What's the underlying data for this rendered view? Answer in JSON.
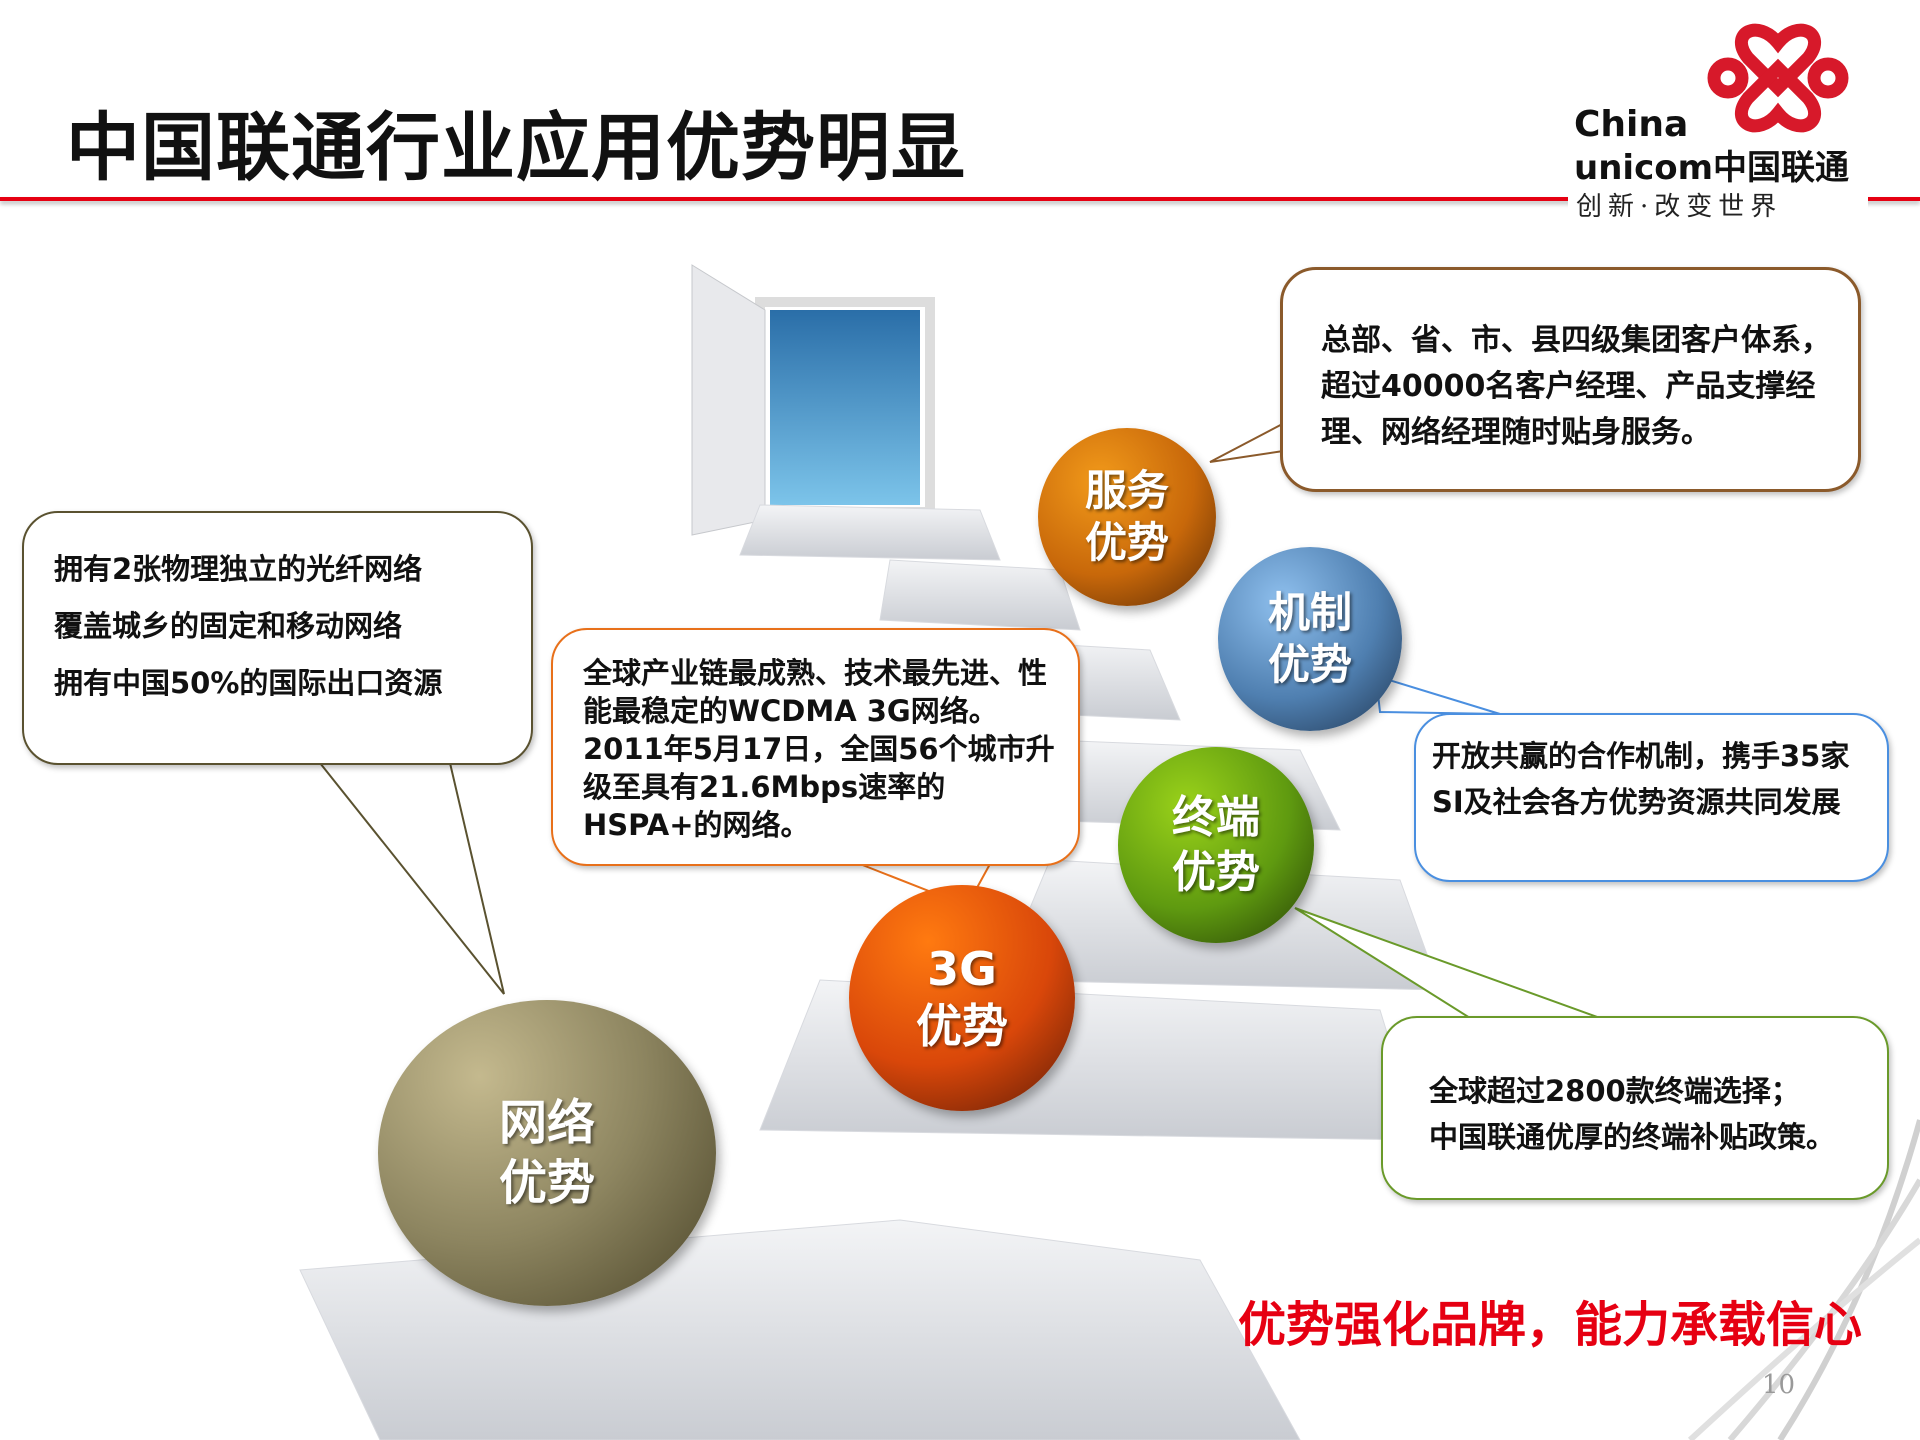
{
  "title": "中国联通行业应用优势明显",
  "logo": {
    "line1": "China",
    "line2": "unicom中国联通",
    "tagline": "创新·改变世界"
  },
  "circles": {
    "service": "服务\n优势",
    "mechanism": "机制\n优势",
    "terminal": "终端\n优势",
    "g3": "3G\n优势",
    "network": "网络\n优势"
  },
  "boxes": {
    "service": "总部、省、市、县四级集团客户体系，超过40000名客户经理、产品支撑经理、网络经理随时贴身服务。",
    "network": [
      "拥有2张物理独立的光纤网络",
      "覆盖城乡的固定和移动网络",
      "拥有中国50%的国际出口资源"
    ],
    "g3": "全球产业链最成熟、技术最先进、性能最稳定的WCDMA 3G网络。2011年5月17日，全国56个城市升级至具有21.6Mbps速率的HSPA+的网络。",
    "mechanism": "开放共赢的合作机制，携手35家SI及社会各方优势资源共同发展",
    "terminal": [
      "全球超过2800款终端选择；",
      "中国联通优厚的终端补贴政策。"
    ]
  },
  "slogan": "优势强化品牌，能力承载信心",
  "page_number": "10",
  "colors": {
    "brand_red": "#e60012",
    "service": "#c8680a",
    "mechanism": "#4f7fb0",
    "terminal": "#5f9a10",
    "g3": "#d9470a",
    "network": "#8d8560"
  }
}
